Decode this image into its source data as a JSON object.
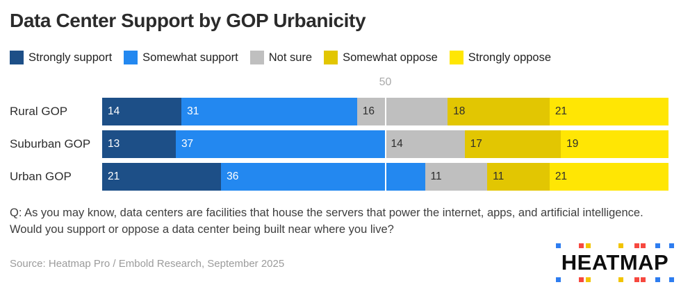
{
  "title": "Data Center Support by GOP Urbanicity",
  "legend": [
    {
      "label": "Strongly support",
      "color": "#1D4F87"
    },
    {
      "label": "Somewhat support",
      "color": "#2388F0"
    },
    {
      "label": "Not sure",
      "color": "#BFBFBF"
    },
    {
      "label": "Somewhat oppose",
      "color": "#E2C602"
    },
    {
      "label": "Strongly oppose",
      "color": "#FFE604"
    }
  ],
  "chart_data": {
    "type": "bar",
    "orientation": "horizontal",
    "stacked": true,
    "title": "Data Center Support by GOP Urbanicity",
    "categories": [
      "Rural GOP",
      "Suburban GOP",
      "Urban GOP"
    ],
    "series": [
      {
        "name": "Strongly support",
        "color": "#1D4F87",
        "label_color": "#FFFFFF",
        "values": [
          14,
          13,
          21
        ]
      },
      {
        "name": "Somewhat support",
        "color": "#2388F0",
        "label_color": "#FFFFFF",
        "values": [
          31,
          37,
          36
        ]
      },
      {
        "name": "Not sure",
        "color": "#BFBFBF",
        "label_color": "#2d2d2d",
        "values": [
          16,
          14,
          11
        ]
      },
      {
        "name": "Somewhat oppose",
        "color": "#E2C602",
        "label_color": "#2d2d2d",
        "values": [
          18,
          17,
          11
        ]
      },
      {
        "name": "Strongly oppose",
        "color": "#FFE604",
        "label_color": "#2d2d2d",
        "values": [
          21,
          19,
          21
        ]
      }
    ],
    "xlim": [
      0,
      100
    ],
    "gridline_value": 50,
    "gridline_label": "50",
    "legend_position": "top",
    "grid": "single vertical white line at 50"
  },
  "question": "Q: As you may know, data centers are facilities that house the servers that power the internet, apps, and artificial intelligence. Would you support or oppose a data center being built near where you live?",
  "source": "Source: Heatmap Pro / Embold Research, September 2025",
  "logo": {
    "text": "HEATMAP",
    "square_pattern": [
      "blue",
      "red",
      "yellow",
      "yellow",
      "red",
      "red",
      "blue",
      "blue"
    ],
    "square_colors": {
      "blue": "#2E7DF0",
      "red": "#F6483F",
      "yellow": "#F2C400"
    }
  }
}
